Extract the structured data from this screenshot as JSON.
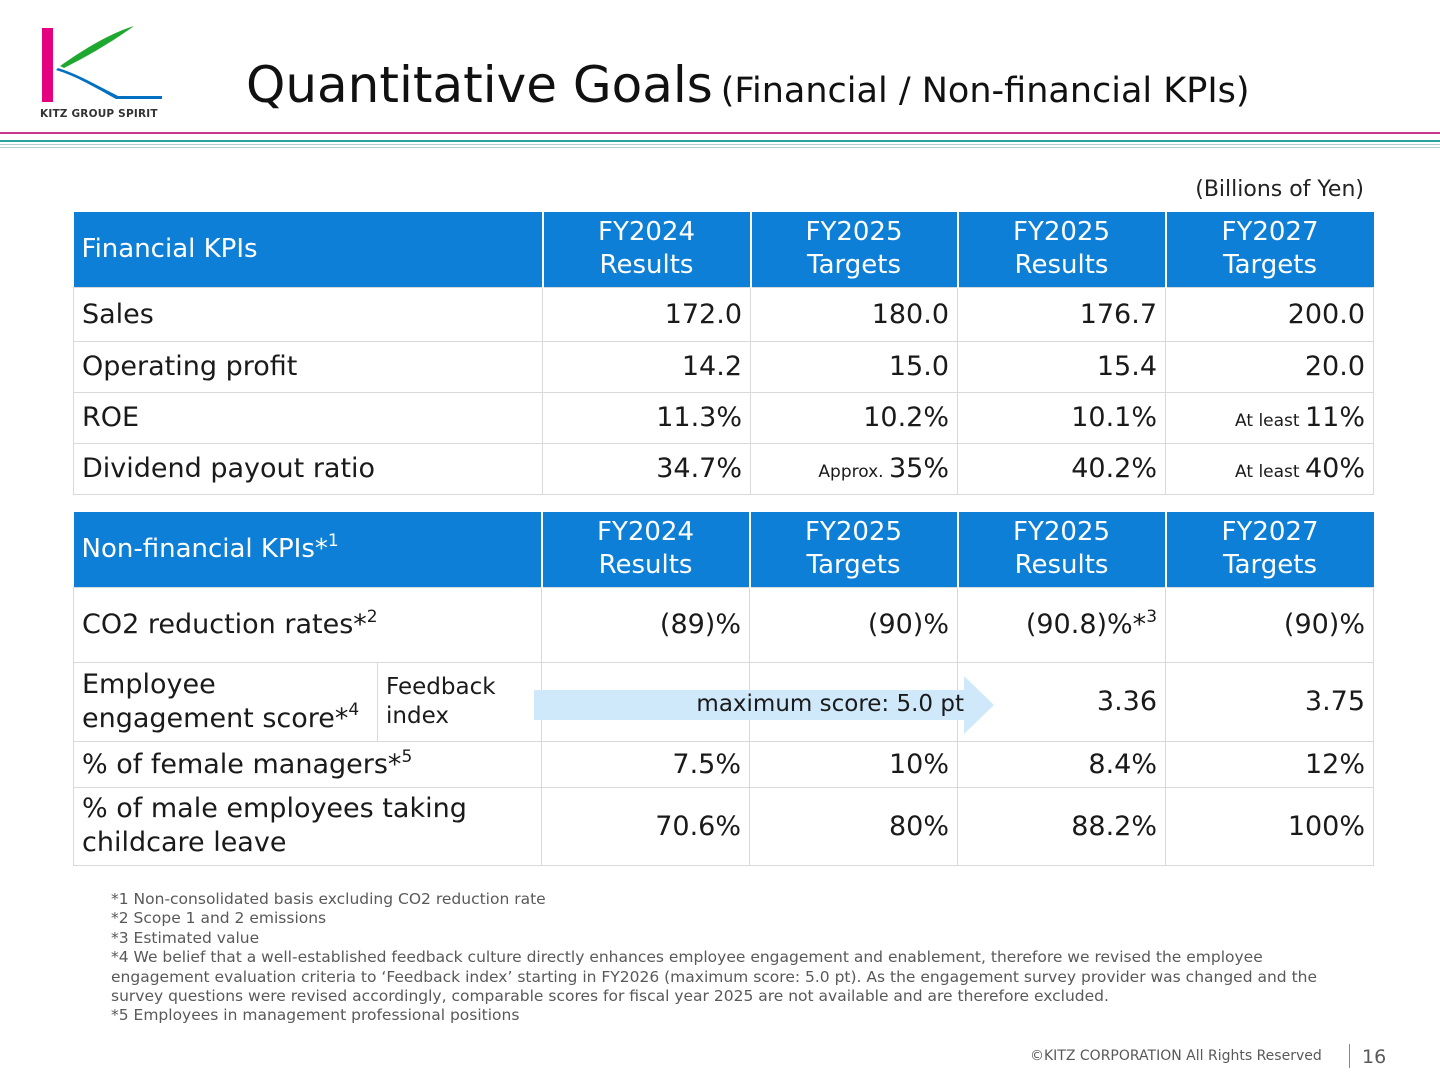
{
  "logo": {
    "text": "KITZ GROUP SPIRIT",
    "colors": [
      "#e4007f",
      "#1ea82f",
      "#0070c0"
    ]
  },
  "title": {
    "main": "Quantitative Goals",
    "sub": "(Financial / Non-financial KPIs)"
  },
  "unit_note": "(Billions of Yen)",
  "financial": {
    "header": {
      "label": "Financial KPIs",
      "cols": [
        {
          "l1": "FY2024",
          "l2": "Results"
        },
        {
          "l1": "FY2025",
          "l2": "Targets"
        },
        {
          "l1": "FY2025",
          "l2": "Results"
        },
        {
          "l1": "FY2027",
          "l2": "Targets"
        }
      ]
    },
    "rows": [
      {
        "label": "Sales",
        "v": [
          {
            "p": "",
            "n": "172.0"
          },
          {
            "p": "",
            "n": "180.0"
          },
          {
            "p": "",
            "n": "176.7"
          },
          {
            "p": "",
            "n": "200.0"
          }
        ]
      },
      {
        "label": "Operating profit",
        "v": [
          {
            "p": "",
            "n": "14.2"
          },
          {
            "p": "",
            "n": "15.0"
          },
          {
            "p": "",
            "n": "15.4"
          },
          {
            "p": "",
            "n": "20.0"
          }
        ]
      },
      {
        "label": "ROE",
        "v": [
          {
            "p": "",
            "n": "11.3%"
          },
          {
            "p": "",
            "n": "10.2%"
          },
          {
            "p": "",
            "n": "10.1%"
          },
          {
            "p": "At least ",
            "n": "11%"
          }
        ]
      },
      {
        "label": "Dividend payout ratio",
        "v": [
          {
            "p": "",
            "n": "34.7%"
          },
          {
            "p": "Approx. ",
            "n": "35%"
          },
          {
            "p": "",
            "n": "40.2%"
          },
          {
            "p": "At least ",
            "n": "40%"
          }
        ]
      }
    ]
  },
  "nonfinancial": {
    "header": {
      "label": "Non-financial KPIs*",
      "label_sup": "1",
      "cols": [
        {
          "l1": "FY2024",
          "l2": "Results"
        },
        {
          "l1": "FY2025",
          "l2": "Targets"
        },
        {
          "l1": "FY2025",
          "l2": "Results"
        },
        {
          "l1": "FY2027",
          "l2": "Targets"
        }
      ]
    },
    "co2": {
      "label": "CO2 reduction rates*",
      "sup": "2",
      "v1": "(89)%",
      "v2": "(90)%",
      "v3": "(90.8)%*",
      "v3_sup": "3",
      "v4": "(90)%"
    },
    "engagement": {
      "label_l1": "Employee",
      "label_l2": "engagement score*",
      "sup": "4",
      "sub_l1": "Feedback",
      "sub_l2": "index",
      "arrow_text": "maximum score: 5.0 pt",
      "v3": "3.36",
      "v4": "3.75"
    },
    "female": {
      "label": "% of female managers*",
      "sup": "5",
      "v": [
        "7.5%",
        "10%",
        "8.4%",
        "12%"
      ]
    },
    "male": {
      "label_l1": "% of male employees taking",
      "label_l2": "childcare leave",
      "v": [
        "70.6%",
        "80%",
        "88.2%",
        "100%"
      ]
    }
  },
  "footnotes": [
    "*1 Non-consolidated basis excluding CO2 reduction rate",
    "*2 Scope 1 and 2 emissions",
    "*3 Estimated value",
    "*4 We belief that a well-established feedback culture directly enhances employee engagement and enablement, therefore we revised the employee engagement evaluation criteria to ‘Feedback index’ starting in FY2026 (maximum score: 5.0 pt). As the engagement survey provider was changed and the survey questions were revised accordingly, comparable scores for fiscal year 2025 are not available and are therefore excluded.",
    "*5 Employees in management professional positions"
  ],
  "footer": {
    "copyright": "©KITZ CORPORATION All Rights Reserved",
    "page": "16"
  }
}
